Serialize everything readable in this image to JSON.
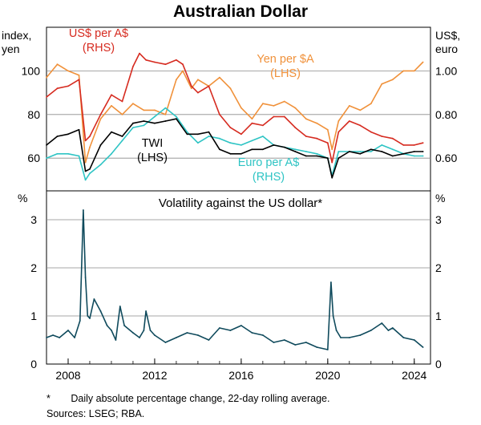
{
  "chart_data": {
    "title": "Australian Dollar",
    "panels": [
      {
        "type": "line",
        "left_axis_label": [
          "index,",
          "yen"
        ],
        "right_axis_label": [
          "US$,",
          "euro"
        ],
        "left_ticks": [
          "60",
          "80",
          "100"
        ],
        "right_ticks": [
          "0.60",
          "0.80",
          "1.00"
        ],
        "ylim_left": [
          45,
          120
        ],
        "ylim_right": [
          0.45,
          1.2
        ],
        "grid": true,
        "series": [
          {
            "name": "US$ per A$",
            "axis_note": "(RHS)",
            "color": "#d62b20",
            "axis": "right",
            "x": [
              2007.0,
              2007.5,
              2008.0,
              2008.5,
              2008.8,
              2009.0,
              2009.5,
              2010.0,
              2010.5,
              2011.0,
              2011.3,
              2011.6,
              2012.0,
              2012.5,
              2013.0,
              2013.3,
              2013.7,
              2014.0,
              2014.5,
              2015.0,
              2015.5,
              2016.0,
              2016.5,
              2017.0,
              2017.5,
              2018.0,
              2018.5,
              2019.0,
              2019.5,
              2020.0,
              2020.2,
              2020.5,
              2021.0,
              2021.5,
              2022.0,
              2022.5,
              2023.0,
              2023.5,
              2024.0,
              2024.4
            ],
            "y": [
              0.88,
              0.92,
              0.93,
              0.96,
              0.68,
              0.7,
              0.8,
              0.89,
              0.86,
              1.02,
              1.08,
              1.05,
              1.04,
              1.03,
              1.05,
              1.03,
              0.93,
              0.9,
              0.93,
              0.8,
              0.74,
              0.71,
              0.76,
              0.75,
              0.79,
              0.79,
              0.74,
              0.7,
              0.69,
              0.67,
              0.58,
              0.72,
              0.77,
              0.75,
              0.72,
              0.7,
              0.69,
              0.66,
              0.66,
              0.67
            ]
          },
          {
            "name": "Yen per $A",
            "axis_note": "(LHS)",
            "color": "#f0913a",
            "axis": "left",
            "x": [
              2007.0,
              2007.5,
              2008.0,
              2008.5,
              2008.8,
              2009.0,
              2009.5,
              2010.0,
              2010.5,
              2011.0,
              2011.5,
              2012.0,
              2012.5,
              2013.0,
              2013.3,
              2013.7,
              2014.0,
              2014.5,
              2015.0,
              2015.5,
              2016.0,
              2016.5,
              2017.0,
              2017.5,
              2018.0,
              2018.5,
              2019.0,
              2019.5,
              2020.0,
              2020.2,
              2020.5,
              2021.0,
              2021.5,
              2022.0,
              2022.5,
              2023.0,
              2023.5,
              2024.0,
              2024.4
            ],
            "y": [
              97,
              103,
              100,
              98,
              58,
              65,
              78,
              84,
              80,
              85,
              82,
              82,
              80,
              96,
              100,
              92,
              96,
              93,
              97,
              92,
              83,
              78,
              85,
              84,
              86,
              83,
              78,
              76,
              73,
              64,
              77,
              84,
              82,
              85,
              94,
              96,
              100,
              100,
              104
            ]
          },
          {
            "name": "TWI",
            "axis_note": "(LHS)",
            "color": "#000000",
            "axis": "left",
            "x": [
              2007.0,
              2007.5,
              2008.0,
              2008.5,
              2008.8,
              2009.0,
              2009.5,
              2010.0,
              2010.5,
              2011.0,
              2011.5,
              2012.0,
              2012.5,
              2013.0,
              2013.5,
              2014.0,
              2014.5,
              2015.0,
              2015.5,
              2016.0,
              2016.5,
              2017.0,
              2017.5,
              2018.0,
              2018.5,
              2019.0,
              2019.5,
              2020.0,
              2020.2,
              2020.5,
              2021.0,
              2021.5,
              2022.0,
              2022.5,
              2023.0,
              2023.5,
              2024.0,
              2024.4
            ],
            "y": [
              66,
              70,
              71,
              73,
              54,
              55,
              66,
              72,
              70,
              76,
              77,
              76,
              77,
              78,
              71,
              71,
              72,
              64,
              62,
              62,
              64,
              64,
              66,
              65,
              63,
              61,
              61,
              60,
              51,
              60,
              63,
              62,
              64,
              63,
              61,
              62,
              63,
              63
            ]
          },
          {
            "name": "Euro per A$",
            "axis_note": "(RHS)",
            "color": "#2ec4c4",
            "axis": "right",
            "x": [
              2007.0,
              2007.5,
              2008.0,
              2008.5,
              2008.8,
              2009.0,
              2009.5,
              2010.0,
              2010.5,
              2011.0,
              2011.5,
              2012.0,
              2012.5,
              2013.0,
              2013.5,
              2014.0,
              2014.5,
              2015.0,
              2015.5,
              2016.0,
              2016.5,
              2017.0,
              2017.5,
              2018.0,
              2018.5,
              2019.0,
              2019.5,
              2020.0,
              2020.2,
              2020.5,
              2021.0,
              2021.5,
              2022.0,
              2022.5,
              2023.0,
              2023.5,
              2024.0,
              2024.4
            ],
            "y": [
              0.6,
              0.62,
              0.62,
              0.61,
              0.5,
              0.53,
              0.57,
              0.62,
              0.68,
              0.74,
              0.75,
              0.79,
              0.83,
              0.79,
              0.72,
              0.67,
              0.7,
              0.69,
              0.67,
              0.66,
              0.68,
              0.7,
              0.66,
              0.65,
              0.64,
              0.63,
              0.62,
              0.6,
              0.52,
              0.63,
              0.63,
              0.63,
              0.63,
              0.66,
              0.64,
              0.62,
              0.61,
              0.61
            ]
          }
        ]
      },
      {
        "type": "line",
        "title": "Volatility against the US dollar*",
        "left_axis_label": "%",
        "right_axis_label": "%",
        "ticks": [
          "0",
          "1",
          "2",
          "3"
        ],
        "ylim": [
          0,
          3.6
        ],
        "grid": true,
        "series": [
          {
            "color": "#0f4a5c",
            "x": [
              2007.0,
              2007.3,
              2007.6,
              2008.0,
              2008.3,
              2008.55,
              2008.7,
              2008.8,
              2008.9,
              2009.0,
              2009.2,
              2009.5,
              2009.8,
              2010.0,
              2010.2,
              2010.4,
              2010.6,
              2011.0,
              2011.3,
              2011.5,
              2011.6,
              2011.8,
              2012.0,
              2012.5,
              2013.0,
              2013.5,
              2014.0,
              2014.5,
              2015.0,
              2015.5,
              2016.0,
              2016.5,
              2017.0,
              2017.5,
              2018.0,
              2018.5,
              2019.0,
              2019.5,
              2020.0,
              2020.15,
              2020.25,
              2020.4,
              2020.6,
              2021.0,
              2021.5,
              2022.0,
              2022.5,
              2022.8,
              2023.0,
              2023.5,
              2024.0,
              2024.4
            ],
            "y": [
              0.55,
              0.6,
              0.55,
              0.7,
              0.55,
              0.9,
              3.2,
              1.8,
              1.0,
              0.95,
              1.35,
              1.1,
              0.8,
              0.7,
              0.5,
              1.2,
              0.8,
              0.65,
              0.55,
              0.7,
              1.1,
              0.7,
              0.6,
              0.45,
              0.55,
              0.65,
              0.6,
              0.5,
              0.75,
              0.7,
              0.8,
              0.65,
              0.6,
              0.45,
              0.5,
              0.4,
              0.45,
              0.35,
              0.3,
              1.7,
              1.0,
              0.7,
              0.55,
              0.55,
              0.6,
              0.7,
              0.85,
              0.7,
              0.75,
              0.55,
              0.5,
              0.35
            ]
          }
        ]
      }
    ],
    "x_ticks": [
      "2008",
      "2012",
      "2016",
      "2020",
      "2024"
    ],
    "x_tick_values": [
      2008,
      2012,
      2016,
      2020,
      2024
    ],
    "xlim": [
      2007.0,
      2024.75
    ]
  },
  "footnote": {
    "marker": "*",
    "text": "Daily absolute percentage change, 22-day rolling average.",
    "sources": "Sources: LSEG; RBA."
  }
}
